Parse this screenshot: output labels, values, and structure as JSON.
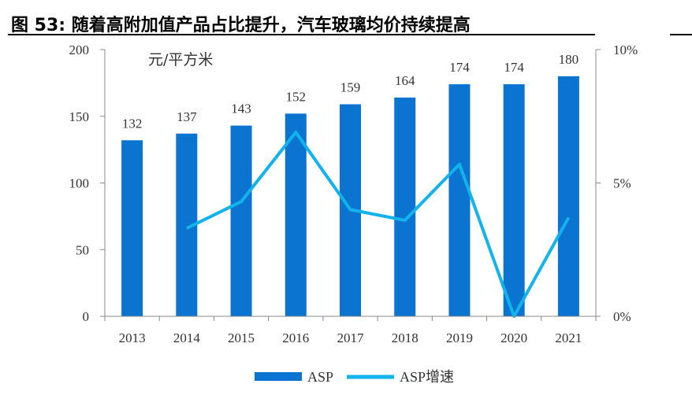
{
  "title": "图 53:  随着高附加值产品占比提升，汽车玻璃均价持续提高",
  "chart_data": {
    "type": "bar",
    "categories": [
      "2013",
      "2014",
      "2015",
      "2016",
      "2017",
      "2018",
      "2019",
      "2020",
      "2021"
    ],
    "unit_label": "元/平方米",
    "series": [
      {
        "name": "ASP",
        "type": "bar",
        "axis": "left",
        "values": [
          132,
          137,
          143,
          152,
          159,
          164,
          174,
          174,
          180
        ],
        "color": "#0b74d0"
      },
      {
        "name": "ASP增速",
        "type": "line",
        "axis": "right",
        "values": [
          null,
          3.3,
          4.3,
          6.9,
          4.0,
          3.6,
          5.7,
          0.0,
          3.7
        ],
        "color": "#12b2ec"
      }
    ],
    "left_axis": {
      "ylim": [
        0,
        200
      ],
      "ticks": [
        "0",
        "50",
        "100",
        "150",
        "200"
      ]
    },
    "right_axis": {
      "ylim": [
        0,
        10
      ],
      "ticks": [
        "0%",
        "5%",
        "10%"
      ]
    },
    "data_labels": [
      "132",
      "137",
      "143",
      "152",
      "159",
      "164",
      "174",
      "174",
      "180"
    ],
    "grid": false,
    "legend_position": "bottom"
  }
}
